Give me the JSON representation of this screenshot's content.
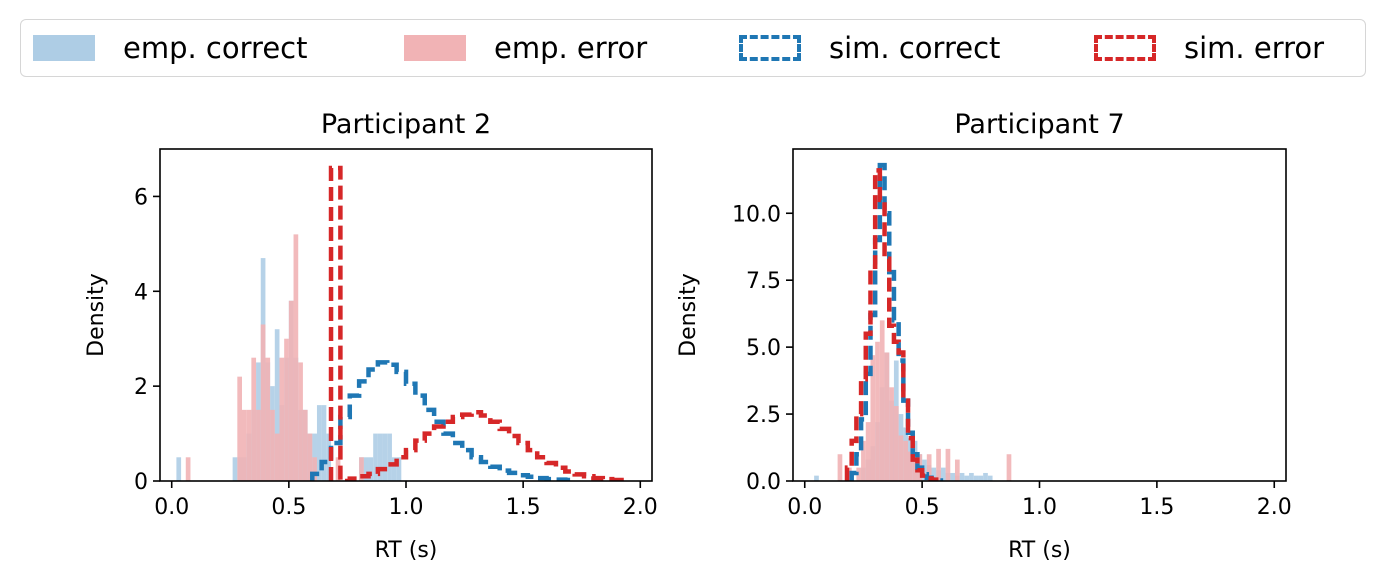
{
  "legend": {
    "items": [
      {
        "label": "emp. correct",
        "color": "#aecde5",
        "style": "filled"
      },
      {
        "label": "emp. error",
        "color": "#f1b3b5",
        "style": "filled"
      },
      {
        "label": "sim. correct",
        "color": "#1f77b4",
        "style": "dashed"
      },
      {
        "label": "sim. error",
        "color": "#d62728",
        "style": "dashed"
      }
    ]
  },
  "chart_data": [
    {
      "type": "histogram",
      "title": "Participant 2",
      "xlabel": "RT (s)",
      "ylabel": "Density",
      "xlim": [
        -0.05,
        2.05
      ],
      "ylim": [
        0,
        7
      ],
      "xticks": [
        0.0,
        0.5,
        1.0,
        1.5,
        2.0
      ],
      "xtick_labels": [
        "0.0",
        "0.5",
        "1.0",
        "1.5",
        "2.0"
      ],
      "yticks": [
        0,
        2,
        4,
        6
      ],
      "ytick_labels": [
        "0",
        "2",
        "4",
        "6"
      ],
      "series": [
        {
          "name": "emp. correct",
          "kind": "filled",
          "color": "#aecde5",
          "opacity": 0.9,
          "x_start": 0.02,
          "bin_width": 0.02,
          "values": [
            0.5,
            0,
            0,
            0,
            0,
            0,
            0,
            0,
            0,
            0,
            0,
            0,
            0.5,
            0.5,
            0.5,
            1.0,
            1.5,
            2.5,
            4.7,
            2.5,
            2.0,
            3.2,
            1.6,
            2.6,
            3.8,
            2.6,
            1.5,
            1.5,
            1.0,
            1.0,
            1.6,
            1.6,
            1.0,
            0,
            0,
            0,
            0,
            0,
            0,
            0.5,
            0.5,
            0.5,
            1.0,
            1.0,
            1.0,
            1.0,
            0.5,
            0.5
          ]
        },
        {
          "name": "emp. error",
          "kind": "filled",
          "color": "#f1b3b5",
          "opacity": 0.9,
          "x_start": 0.06,
          "bin_width": 0.02,
          "values": [
            0.5,
            0,
            0,
            0,
            0,
            0,
            0,
            0,
            0,
            0,
            0,
            2.2,
            1.5,
            1.5,
            2.6,
            1.5,
            3.3,
            2.6,
            1.5,
            1.0,
            2.6,
            3.0,
            3.8,
            5.2,
            2.5,
            1.5,
            1.0,
            0.5,
            0,
            0,
            0,
            0,
            0.5,
            0,
            0,
            0,
            0,
            0.5
          ]
        },
        {
          "name": "sim. correct",
          "kind": "step-dashed",
          "color": "#1f77b4",
          "x_start": 0.6,
          "bin_width": 0.04,
          "values": [
            0.15,
            0.4,
            0.8,
            1.35,
            1.8,
            2.1,
            2.35,
            2.5,
            2.45,
            2.3,
            2.05,
            1.8,
            1.5,
            1.25,
            1.0,
            0.8,
            0.65,
            0.5,
            0.4,
            0.3,
            0.22,
            0.17,
            0.12,
            0.09,
            0.06,
            0.04,
            0.03,
            0.02
          ]
        },
        {
          "name": "sim. error",
          "kind": "step-dashed",
          "color": "#d62728",
          "x_start": 0.68,
          "bin_width": 0.04,
          "values": [
            6.6,
            0,
            0.05,
            0.1,
            0.15,
            0.25,
            0.35,
            0.5,
            0.65,
            0.85,
            1.0,
            1.15,
            1.25,
            1.35,
            1.4,
            1.45,
            1.38,
            1.25,
            1.1,
            0.95,
            0.8,
            0.65,
            0.5,
            0.38,
            0.28,
            0.2,
            0.14,
            0.1,
            0.06,
            0.04,
            0.02
          ]
        }
      ]
    },
    {
      "type": "histogram",
      "title": "Participant 7",
      "xlabel": "RT (s)",
      "ylabel": "Density",
      "xlim": [
        -0.05,
        2.05
      ],
      "ylim": [
        0,
        12.4
      ],
      "xticks": [
        0.0,
        0.5,
        1.0,
        1.5,
        2.0
      ],
      "xtick_labels": [
        "0.0",
        "0.5",
        "1.0",
        "1.5",
        "2.0"
      ],
      "yticks": [
        0.0,
        2.5,
        5.0,
        7.5,
        10.0
      ],
      "ytick_labels": [
        "0.0",
        "2.5",
        "5.0",
        "7.5",
        "10.0"
      ],
      "series": [
        {
          "name": "emp. correct",
          "kind": "filled",
          "color": "#aecde5",
          "opacity": 0.9,
          "x_start": 0.04,
          "bin_width": 0.02,
          "values": [
            0.2,
            0,
            0,
            0,
            0,
            0,
            0,
            0,
            0,
            0,
            0.5,
            0.8,
            1.3,
            2.2,
            3.5,
            4.8,
            3.0,
            4.5,
            2.5,
            2.0,
            1.6,
            1.5,
            1.0,
            0.8,
            0.6,
            0.5,
            0.4,
            0.5,
            0.3,
            0.3,
            0.2,
            0.3,
            0.2,
            0.3,
            0.2,
            0.2,
            0.3,
            0.2
          ]
        },
        {
          "name": "emp. error",
          "kind": "filled",
          "color": "#f1b3b5",
          "opacity": 0.9,
          "x_start": 0.08,
          "bin_width": 0.02,
          "values": [
            0,
            0,
            0,
            1.0,
            0,
            0.5,
            0,
            0.5,
            1.5,
            2.2,
            4.7,
            5.2,
            6.0,
            4.8,
            3.5,
            2.8,
            1.7,
            1.5,
            1.1,
            0.8,
            1.0,
            0,
            1.0,
            0,
            1.2,
            0,
            1.2,
            0,
            0.8,
            0,
            0,
            0,
            0,
            0,
            0,
            0,
            0,
            0,
            0,
            1.0
          ]
        },
        {
          "name": "sim. correct",
          "kind": "step-dashed",
          "color": "#1f77b4",
          "x_start": 0.2,
          "bin_width": 0.02,
          "values": [
            0.3,
            1.0,
            2.3,
            4.0,
            6.2,
            9.0,
            11.8,
            10.0,
            7.8,
            6.0,
            4.5,
            3.0,
            1.8,
            1.0,
            0.5,
            0.25,
            0.12,
            0.05,
            0.02
          ]
        },
        {
          "name": "sim. error",
          "kind": "step-dashed",
          "color": "#d62728",
          "x_start": 0.18,
          "bin_width": 0.02,
          "values": [
            0.5,
            1.5,
            2.5,
            3.8,
            5.5,
            8.0,
            11.6,
            10.5,
            8.3,
            5.8,
            5.2,
            4.8,
            3.0,
            1.6,
            0.8,
            0.4,
            0.2,
            0.1,
            0.05
          ]
        }
      ]
    }
  ]
}
